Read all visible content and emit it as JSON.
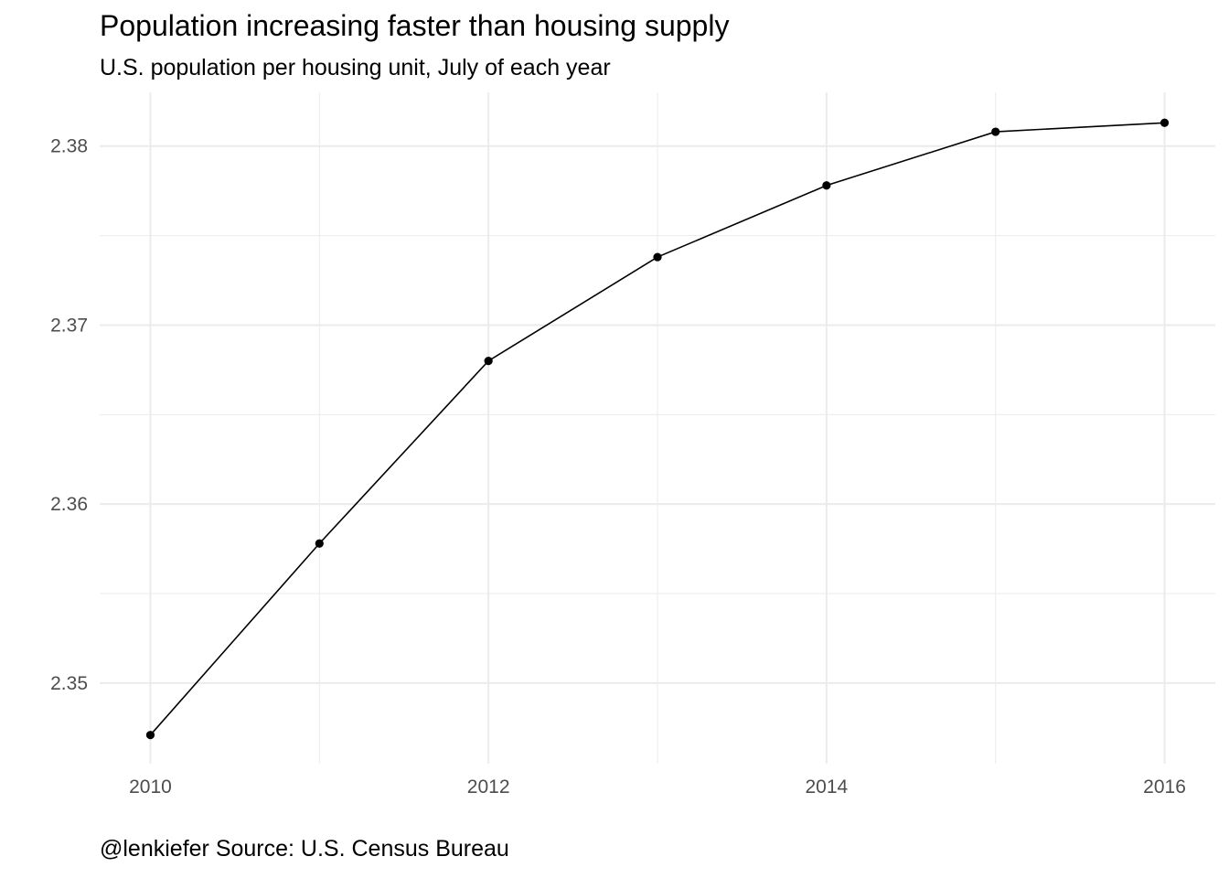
{
  "chart_data": {
    "type": "line",
    "title": "Population increasing faster than housing supply",
    "subtitle": "U.S. population per housing unit, July of each year",
    "caption": "@lenkiefer Source: U.S. Census Bureau",
    "xlabel": "",
    "ylabel": "",
    "x": [
      2010,
      2011,
      2012,
      2013,
      2014,
      2015,
      2016
    ],
    "series": [
      {
        "values": [
          2.3471,
          2.3578,
          2.368,
          2.3738,
          2.3778,
          2.3808,
          2.3813
        ]
      }
    ],
    "xlim": [
      2009.7,
      2016.3
    ],
    "ylim": [
      2.3455,
      2.383
    ],
    "x_ticks": [
      2010,
      2012,
      2014,
      2016
    ],
    "x_tick_labels": [
      "2010",
      "2012",
      "2014",
      "2016"
    ],
    "y_ticks": [
      2.35,
      2.36,
      2.37,
      2.38
    ],
    "y_tick_labels": [
      "2.35",
      "2.36",
      "2.37",
      "2.38"
    ],
    "grid": true,
    "legend": "none",
    "colors": {
      "line": "#000000",
      "point": "#000000",
      "grid": "#ebebeb",
      "tick_text": "#4d4d4d"
    }
  }
}
